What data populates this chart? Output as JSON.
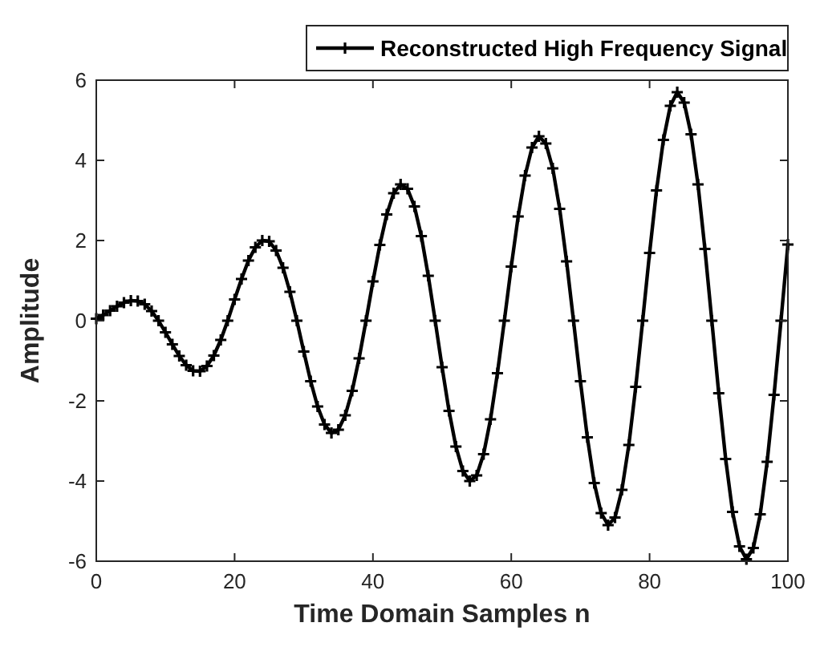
{
  "chart_data": {
    "type": "line",
    "xlabel": "Time Domain Samples n",
    "ylabel": "Amplitude",
    "x": [
      0,
      1,
      2,
      3,
      4,
      5,
      6,
      7,
      8,
      9,
      10,
      11,
      12,
      13,
      14,
      15,
      16,
      17,
      18,
      19,
      20,
      21,
      22,
      23,
      24,
      25,
      26,
      27,
      28,
      29,
      30,
      31,
      32,
      33,
      34,
      35,
      36,
      37,
      38,
      39,
      40,
      41,
      42,
      43,
      44,
      45,
      46,
      47,
      48,
      49,
      50,
      51,
      52,
      53,
      54,
      55,
      56,
      57,
      58,
      59,
      60,
      61,
      62,
      63,
      64,
      65,
      66,
      67,
      68,
      69,
      70,
      71,
      72,
      73,
      74,
      75,
      76,
      77,
      78,
      79,
      80,
      81,
      82,
      83,
      84,
      85,
      86,
      87,
      88,
      89,
      90,
      91,
      92,
      93,
      94,
      95,
      96,
      97,
      98,
      99,
      100
    ],
    "series": [
      {
        "name": "Reconstructed High Frequency Signal",
        "color": "#000000",
        "values": [
          0.05,
          0.14,
          0.25,
          0.36,
          0.45,
          0.5,
          0.49,
          0.41,
          0.24,
          0,
          -0.29,
          -0.59,
          -0.88,
          -1.11,
          -1.25,
          -1.26,
          -1.13,
          -0.87,
          -0.48,
          0,
          0.53,
          1.04,
          1.5,
          1.83,
          2,
          1.98,
          1.75,
          1.32,
          0.72,
          0,
          -0.77,
          -1.51,
          -2.14,
          -2.59,
          -2.8,
          -2.72,
          -2.36,
          -1.75,
          -0.94,
          0,
          0.98,
          1.89,
          2.65,
          3.18,
          3.4,
          3.29,
          2.85,
          2.11,
          1.12,
          0,
          -1.16,
          -2.25,
          -3.14,
          -3.75,
          -4,
          -3.86,
          -3.33,
          -2.46,
          -1.31,
          0,
          1.35,
          2.6,
          3.62,
          4.32,
          4.6,
          4.42,
          3.8,
          2.79,
          1.48,
          0,
          -1.51,
          -2.91,
          -4.05,
          -4.8,
          -5.1,
          -4.91,
          -4.22,
          -3.1,
          -1.65,
          0,
          1.69,
          3.25,
          4.51,
          5.36,
          5.7,
          5.44,
          4.65,
          3.4,
          1.79,
          0,
          -1.81,
          -3.45,
          -4.77,
          -5.63,
          -5.95,
          -5.67,
          -4.83,
          -3.52,
          -1.85,
          0,
          1.9
        ]
      }
    ],
    "xlim": [
      0,
      100
    ],
    "xticks": [
      0,
      20,
      40,
      60,
      80,
      100
    ],
    "ylim": [
      -6,
      6
    ],
    "yticks": [
      -6,
      -4,
      -2,
      0,
      2,
      4,
      6
    ],
    "grid": false,
    "legend": "top",
    "marker": "cross",
    "line_style": "solid"
  }
}
